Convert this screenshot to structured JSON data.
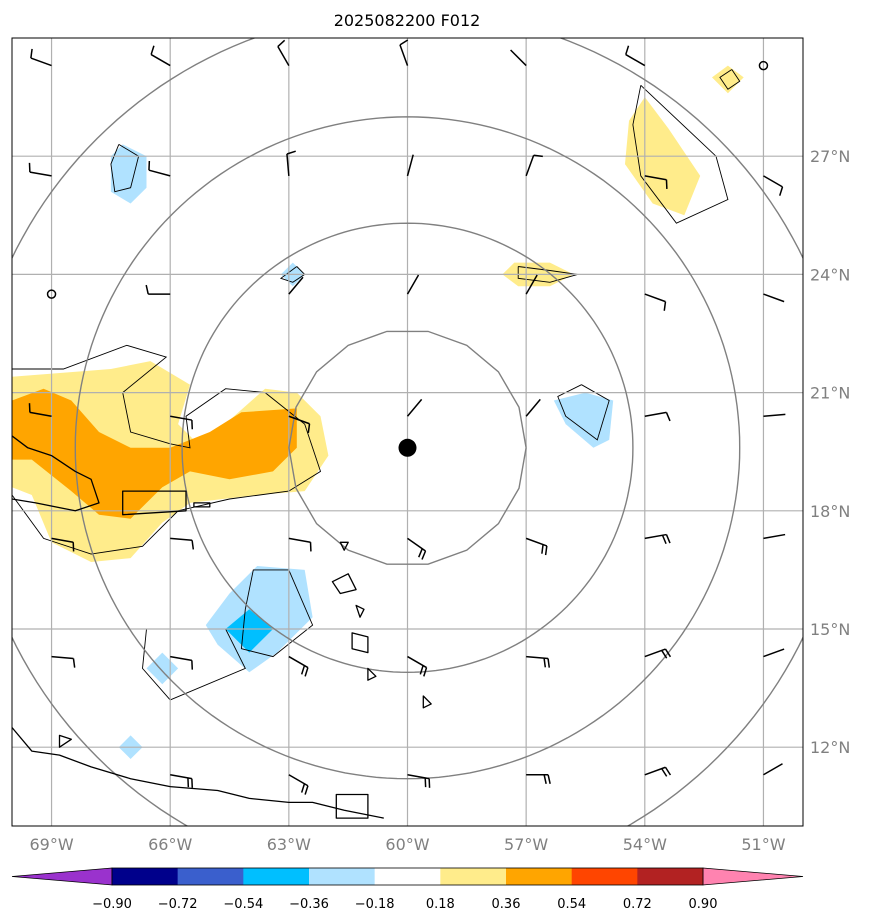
{
  "title": "2025082200 F012",
  "map": {
    "lon_range": [
      -70,
      -50
    ],
    "lat_range": [
      10,
      30
    ],
    "center": {
      "lon": -60,
      "lat": 19.6
    },
    "lon_ticks": [
      {
        "value": -69,
        "label": "69°W"
      },
      {
        "value": -66,
        "label": "66°W"
      },
      {
        "value": -63,
        "label": "63°W"
      },
      {
        "value": -60,
        "label": "60°W"
      },
      {
        "value": -57,
        "label": "57°W"
      },
      {
        "value": -54,
        "label": "54°W"
      },
      {
        "value": -51,
        "label": "51°W"
      }
    ],
    "lat_ticks": [
      {
        "value": 12,
        "label": "12°N"
      },
      {
        "value": 15,
        "label": "15°N"
      },
      {
        "value": 18,
        "label": "18°N"
      },
      {
        "value": 21,
        "label": "21°N"
      },
      {
        "value": 24,
        "label": "24°N"
      },
      {
        "value": 27,
        "label": "27°N"
      }
    ],
    "grid": true,
    "range_ring_radii_deg": [
      3,
      5.7,
      8.4,
      11.1
    ],
    "colors": {
      "grid": "#b0b0b0",
      "rings": "#808080",
      "coast": "#000000",
      "center_dot": "#000000"
    }
  },
  "colorbar": {
    "levels": [
      -0.9,
      -0.72,
      -0.54,
      -0.36,
      -0.18,
      0.18,
      0.36,
      0.54,
      0.72,
      0.9
    ],
    "labels": [
      "−0.90",
      "−0.72",
      "−0.54",
      "−0.36",
      "−0.18",
      "0.18",
      "0.36",
      "0.54",
      "0.72",
      "0.90"
    ],
    "colors": [
      "#9a32cd",
      "#00008b",
      "#3a5fcd",
      "#00bfff",
      "#b0e2ff",
      "#ffffff",
      "#ffec8b",
      "#ffa500",
      "#ff4500",
      "#b22222",
      "#ff83b0"
    ]
  },
  "shaded_regions": [
    {
      "level": "pos1",
      "color": "#ffec8b",
      "pts": [
        [
          -70,
          21.4
        ],
        [
          -67.5,
          21.6
        ],
        [
          -66.5,
          21.8
        ],
        [
          -65.5,
          21.2
        ],
        [
          -65.8,
          20.2
        ],
        [
          -65.2,
          19.6
        ],
        [
          -64.5,
          20.3
        ],
        [
          -63.6,
          21.1
        ],
        [
          -62.8,
          21.0
        ],
        [
          -62.2,
          20.4
        ],
        [
          -62.0,
          19.4
        ],
        [
          -62.6,
          18.5
        ],
        [
          -63.8,
          18.4
        ],
        [
          -65.5,
          18.2
        ],
        [
          -66.2,
          17.7
        ],
        [
          -67,
          16.8
        ],
        [
          -68,
          16.7
        ],
        [
          -69.0,
          17.2
        ],
        [
          -69.5,
          18.4
        ],
        [
          -70,
          18.6
        ]
      ]
    },
    {
      "level": "pos2",
      "color": "#ffa500",
      "pts": [
        [
          -70,
          20.8
        ],
        [
          -69.2,
          21.1
        ],
        [
          -68.5,
          20.8
        ],
        [
          -67.8,
          20.0
        ],
        [
          -67.0,
          19.6
        ],
        [
          -66.0,
          19.6
        ],
        [
          -65.0,
          20.0
        ],
        [
          -64.2,
          20.5
        ],
        [
          -62.8,
          20.6
        ],
        [
          -62.8,
          19.6
        ],
        [
          -63.4,
          19.0
        ],
        [
          -64.5,
          18.8
        ],
        [
          -65.5,
          19.0
        ],
        [
          -66.2,
          18.6
        ],
        [
          -67.0,
          17.8
        ],
        [
          -67.8,
          17.9
        ],
        [
          -68.5,
          18.5
        ],
        [
          -69.5,
          19.3
        ],
        [
          -70,
          19.3
        ]
      ]
    },
    {
      "level": "pos1",
      "color": "#ffec8b",
      "pts": [
        [
          -54.0,
          28.5
        ],
        [
          -53.4,
          27.7
        ],
        [
          -52.6,
          26.5
        ],
        [
          -53.0,
          25.5
        ],
        [
          -53.8,
          25.8
        ],
        [
          -54.5,
          26.8
        ],
        [
          -54.4,
          27.9
        ]
      ]
    },
    {
      "level": "pos1",
      "color": "#ffec8b",
      "pts": [
        [
          -57.3,
          24.3
        ],
        [
          -56.4,
          24.3
        ],
        [
          -55.8,
          24.0
        ],
        [
          -56.4,
          23.7
        ],
        [
          -57.2,
          23.7
        ],
        [
          -57.6,
          24.0
        ]
      ]
    },
    {
      "level": "pos1",
      "color": "#ffec8b",
      "pts": [
        [
          -51.9,
          29.3
        ],
        [
          -51.5,
          29.0
        ],
        [
          -51.9,
          28.6
        ],
        [
          -52.3,
          29.0
        ]
      ]
    },
    {
      "level": "neg1",
      "color": "#b0e2ff",
      "pts": [
        [
          -62.6,
          16.5
        ],
        [
          -62.4,
          15.3
        ],
        [
          -63.3,
          14.4
        ],
        [
          -64.0,
          13.9
        ],
        [
          -64.8,
          14.6
        ],
        [
          -65.1,
          15.1
        ],
        [
          -64.5,
          15.9
        ],
        [
          -63.8,
          16.6
        ]
      ]
    },
    {
      "level": "neg2",
      "color": "#00bfff",
      "pts": [
        [
          -64.0,
          15.5
        ],
        [
          -63.4,
          15.0
        ],
        [
          -64.0,
          14.4
        ],
        [
          -64.6,
          15.0
        ]
      ]
    },
    {
      "level": "neg1",
      "color": "#b0e2ff",
      "pts": [
        [
          -55.5,
          21.0
        ],
        [
          -54.8,
          20.8
        ],
        [
          -54.9,
          19.8
        ],
        [
          -55.3,
          19.6
        ],
        [
          -56.0,
          20.2
        ],
        [
          -56.3,
          20.8
        ]
      ]
    },
    {
      "level": "neg1",
      "color": "#b0e2ff",
      "pts": [
        [
          -67.2,
          27.3
        ],
        [
          -66.6,
          27.0
        ],
        [
          -66.6,
          26.2
        ],
        [
          -67.0,
          25.8
        ],
        [
          -67.5,
          26.1
        ],
        [
          -67.5,
          27.0
        ]
      ]
    },
    {
      "level": "neg1",
      "color": "#b0e2ff",
      "pts": [
        [
          -66.2,
          14.4
        ],
        [
          -65.8,
          14.0
        ],
        [
          -66.2,
          13.6
        ],
        [
          -66.6,
          14.0
        ]
      ]
    },
    {
      "level": "neg1",
      "color": "#b0e2ff",
      "pts": [
        [
          -62.9,
          24.3
        ],
        [
          -62.6,
          24.0
        ],
        [
          -62.9,
          23.7
        ],
        [
          -63.2,
          24.0
        ]
      ]
    },
    {
      "level": "neg1",
      "color": "#b0e2ff",
      "pts": [
        [
          -67.0,
          12.3
        ],
        [
          -66.7,
          12.0
        ],
        [
          -67.0,
          11.7
        ],
        [
          -67.3,
          12.0
        ]
      ]
    }
  ],
  "contours": [
    [
      [
        -70,
        21.6
      ],
      [
        -68.7,
        21.6
      ],
      [
        -67.1,
        22.2
      ],
      [
        -66.1,
        21.9
      ],
      [
        -67.2,
        21.0
      ],
      [
        -67.0,
        20.0
      ],
      [
        -66.0,
        19.7
      ],
      [
        -65.5,
        19.6
      ],
      [
        -65.6,
        20.4
      ],
      [
        -64.6,
        21.1
      ],
      [
        -63.6,
        21.0
      ],
      [
        -62.6,
        20.2
      ],
      [
        -62.2,
        19.0
      ],
      [
        -63.0,
        18.5
      ],
      [
        -64.5,
        18.3
      ],
      [
        -65.8,
        18.0
      ],
      [
        -66.7,
        17.1
      ],
      [
        -68.0,
        16.9
      ],
      [
        -69.2,
        17.3
      ],
      [
        -70,
        18.4
      ]
    ],
    [
      [
        -54.1,
        28.8
      ],
      [
        -52.2,
        27.0
      ],
      [
        -51.9,
        25.9
      ],
      [
        -53.2,
        25.3
      ],
      [
        -54.1,
        26.5
      ],
      [
        -54.3,
        27.8
      ],
      [
        -54.1,
        28.8
      ]
    ],
    [
      [
        -51.8,
        29.2
      ],
      [
        -51.6,
        28.9
      ],
      [
        -51.9,
        28.7
      ],
      [
        -52.1,
        29.0
      ],
      [
        -51.8,
        29.2
      ]
    ],
    [
      [
        -57.2,
        24.2
      ],
      [
        -56.4,
        24.1
      ],
      [
        -55.7,
        24.0
      ],
      [
        -56.4,
        23.8
      ],
      [
        -57.2,
        23.9
      ],
      [
        -57.2,
        24.2
      ]
    ],
    [
      [
        -63.0,
        16.5
      ],
      [
        -62.4,
        15.1
      ],
      [
        -63.4,
        14.3
      ],
      [
        -64.2,
        14.5
      ],
      [
        -64.1,
        15.5
      ],
      [
        -63.9,
        16.5
      ],
      [
        -63.0,
        16.5
      ]
    ],
    [
      [
        -66.6,
        15.0
      ],
      [
        -64.6,
        15.0
      ],
      [
        -64.1,
        14.0
      ],
      [
        -66.0,
        13.2
      ],
      [
        -66.7,
        14.0
      ],
      [
        -66.6,
        15.0
      ]
    ],
    [
      [
        -55.6,
        21.2
      ],
      [
        -54.9,
        20.8
      ],
      [
        -55.2,
        19.8
      ],
      [
        -56.0,
        20.4
      ],
      [
        -56.2,
        20.9
      ],
      [
        -55.6,
        21.2
      ]
    ],
    [
      [
        -67.3,
        27.3
      ],
      [
        -66.8,
        27.0
      ],
      [
        -67.0,
        26.2
      ],
      [
        -67.4,
        26.1
      ],
      [
        -67.5,
        26.8
      ],
      [
        -67.3,
        27.3
      ]
    ],
    [
      [
        -62.8,
        24.2
      ],
      [
        -62.6,
        24.0
      ],
      [
        -62.9,
        23.8
      ],
      [
        -63.2,
        23.9
      ],
      [
        -62.8,
        24.2
      ]
    ]
  ],
  "coastlines": [
    {
      "closed": false,
      "pts": [
        [
          -70,
          19.9
        ],
        [
          -69.6,
          19.6
        ],
        [
          -69.0,
          19.4
        ],
        [
          -68.4,
          19.0
        ],
        [
          -68.0,
          18.8
        ],
        [
          -67.8,
          18.2
        ],
        [
          -68.4,
          18.0
        ],
        [
          -69.4,
          18.2
        ],
        [
          -70,
          18.3
        ]
      ]
    },
    {
      "closed": true,
      "pts": [
        [
          -67.2,
          18.5
        ],
        [
          -65.6,
          18.5
        ],
        [
          -65.6,
          18.0
        ],
        [
          -67.2,
          17.9
        ],
        [
          -67.2,
          18.5
        ]
      ]
    },
    {
      "closed": true,
      "pts": [
        [
          -65.4,
          18.2
        ],
        [
          -65.0,
          18.2
        ],
        [
          -65.0,
          18.1
        ],
        [
          -65.4,
          18.1
        ]
      ]
    },
    {
      "closed": true,
      "pts": [
        [
          -61.9,
          16.2
        ],
        [
          -61.5,
          16.4
        ],
        [
          -61.3,
          16.0
        ],
        [
          -61.7,
          15.9
        ]
      ]
    },
    {
      "closed": true,
      "pts": [
        [
          -61.4,
          14.9
        ],
        [
          -61.0,
          14.8
        ],
        [
          -61.0,
          14.4
        ],
        [
          -61.4,
          14.5
        ]
      ]
    },
    {
      "closed": true,
      "pts": [
        [
          -61.0,
          14.0
        ],
        [
          -60.8,
          13.8
        ],
        [
          -61.0,
          13.7
        ]
      ]
    },
    {
      "closed": true,
      "pts": [
        [
          -61.3,
          15.6
        ],
        [
          -61.1,
          15.5
        ],
        [
          -61.2,
          15.3
        ]
      ]
    },
    {
      "closed": true,
      "pts": [
        [
          -59.6,
          13.3
        ],
        [
          -59.4,
          13.1
        ],
        [
          -59.6,
          13.0
        ]
      ]
    },
    {
      "closed": true,
      "pts": [
        [
          -61.7,
          17.2
        ],
        [
          -61.5,
          17.2
        ],
        [
          -61.6,
          17.0
        ]
      ]
    },
    {
      "closed": false,
      "pts": [
        [
          -70,
          12.5
        ],
        [
          -69.5,
          11.9
        ],
        [
          -68.8,
          11.8
        ],
        [
          -68,
          11.5
        ],
        [
          -67,
          11.2
        ],
        [
          -66,
          11.0
        ],
        [
          -64.8,
          10.9
        ],
        [
          -64,
          10.7
        ],
        [
          -63,
          10.6
        ],
        [
          -62.4,
          10.6
        ],
        [
          -61.6,
          10.4
        ],
        [
          -60.6,
          10.2
        ]
      ]
    },
    {
      "closed": true,
      "pts": [
        [
          -61.8,
          10.8
        ],
        [
          -61.0,
          10.8
        ],
        [
          -61.0,
          10.2
        ],
        [
          -61.8,
          10.2
        ]
      ]
    },
    {
      "closed": true,
      "pts": [
        [
          -68.8,
          12.3
        ],
        [
          -68.5,
          12.2
        ],
        [
          -68.8,
          12.0
        ]
      ]
    }
  ],
  "wind_barbs": [
    {
      "lon": -69,
      "lat": 29.3,
      "dir": 290,
      "flags": [
        1
      ]
    },
    {
      "lon": -66,
      "lat": 29.3,
      "dir": 300,
      "flags": [
        1
      ]
    },
    {
      "lon": -63,
      "lat": 29.3,
      "dir": 330,
      "flags": [
        1
      ]
    },
    {
      "lon": -60,
      "lat": 29.3,
      "dir": 340,
      "flags": [
        1
      ]
    },
    {
      "lon": -57,
      "lat": 29.3,
      "dir": 315,
      "flags": []
    },
    {
      "lon": -54,
      "lat": 29.3,
      "dir": 300,
      "flags": [
        1
      ]
    },
    {
      "lon": -69,
      "lat": 26.5,
      "dir": 280,
      "flags": [
        1
      ]
    },
    {
      "lon": -66,
      "lat": 26.5,
      "dir": 285,
      "flags": [
        1
      ]
    },
    {
      "lon": -63,
      "lat": 26.5,
      "dir": 355,
      "flags": [
        1
      ]
    },
    {
      "lon": -60,
      "lat": 26.5,
      "dir": 15,
      "flags": []
    },
    {
      "lon": -57,
      "lat": 26.5,
      "dir": 20,
      "flags": [
        1
      ]
    },
    {
      "lon": -54,
      "lat": 26.5,
      "dir": 100,
      "flags": [
        1
      ]
    },
    {
      "lon": -51,
      "lat": 26.5,
      "dir": 120,
      "flags": [
        1
      ]
    },
    {
      "lon": -66,
      "lat": 23.5,
      "dir": 270,
      "flags": [
        1
      ]
    },
    {
      "lon": -63,
      "lat": 23.5,
      "dir": 40,
      "flags": []
    },
    {
      "lon": -60,
      "lat": 23.5,
      "dir": 30,
      "flags": []
    },
    {
      "lon": -57,
      "lat": 23.5,
      "dir": 30,
      "flags": []
    },
    {
      "lon": -54,
      "lat": 23.5,
      "dir": 110,
      "flags": [
        1
      ]
    },
    {
      "lon": -51,
      "lat": 23.5,
      "dir": 110,
      "flags": []
    },
    {
      "lon": -69,
      "lat": 20.4,
      "dir": 280,
      "flags": [
        1
      ]
    },
    {
      "lon": -66,
      "lat": 20.4,
      "dir": 100,
      "flags": [
        1
      ]
    },
    {
      "lon": -63,
      "lat": 20.4,
      "dir": 110,
      "flags": [
        1
      ]
    },
    {
      "lon": -60,
      "lat": 20.4,
      "dir": 40,
      "flags": []
    },
    {
      "lon": -57,
      "lat": 20.4,
      "dir": 40,
      "flags": []
    },
    {
      "lon": -54,
      "lat": 20.4,
      "dir": 80,
      "flags": [
        1
      ]
    },
    {
      "lon": -51,
      "lat": 20.4,
      "dir": 85,
      "flags": []
    },
    {
      "lon": -69,
      "lat": 17.3,
      "dir": 100,
      "flags": [
        1
      ]
    },
    {
      "lon": -66,
      "lat": 17.3,
      "dir": 95,
      "flags": [
        1
      ]
    },
    {
      "lon": -63,
      "lat": 17.3,
      "dir": 100,
      "flags": [
        1
      ]
    },
    {
      "lon": -60,
      "lat": 17.3,
      "dir": 125,
      "flags": [
        1,
        1
      ]
    },
    {
      "lon": -57,
      "lat": 17.3,
      "dir": 110,
      "flags": [
        1,
        1
      ]
    },
    {
      "lon": -54,
      "lat": 17.3,
      "dir": 80,
      "flags": [
        1,
        1
      ]
    },
    {
      "lon": -51,
      "lat": 17.3,
      "dir": 80,
      "flags": []
    },
    {
      "lon": -69,
      "lat": 14.3,
      "dir": 95,
      "flags": [
        1
      ]
    },
    {
      "lon": -66,
      "lat": 14.3,
      "dir": 100,
      "flags": [
        1
      ]
    },
    {
      "lon": -63,
      "lat": 14.3,
      "dir": 120,
      "flags": [
        1,
        1
      ]
    },
    {
      "lon": -60,
      "lat": 14.3,
      "dir": 120,
      "flags": [
        1,
        1
      ]
    },
    {
      "lon": -57,
      "lat": 14.3,
      "dir": 95,
      "flags": [
        1,
        1
      ]
    },
    {
      "lon": -54,
      "lat": 14.3,
      "dir": 70,
      "flags": [
        1,
        1
      ]
    },
    {
      "lon": -51,
      "lat": 14.3,
      "dir": 70,
      "flags": []
    },
    {
      "lon": -66,
      "lat": 11.3,
      "dir": 100,
      "flags": [
        1,
        1
      ]
    },
    {
      "lon": -63,
      "lat": 11.3,
      "dir": 120,
      "flags": [
        1,
        1
      ]
    },
    {
      "lon": -60,
      "lat": 11.3,
      "dir": 100,
      "flags": [
        1,
        1
      ]
    },
    {
      "lon": -57,
      "lat": 11.3,
      "dir": 90,
      "flags": [
        1,
        1
      ]
    },
    {
      "lon": -54,
      "lat": 11.3,
      "dir": 70,
      "flags": [
        1,
        1
      ]
    },
    {
      "lon": -51,
      "lat": 11.3,
      "dir": 60,
      "flags": []
    }
  ],
  "calm_markers": [
    {
      "lon": -69,
      "lat": 23.5
    },
    {
      "lon": -51,
      "lat": 29.3
    }
  ]
}
